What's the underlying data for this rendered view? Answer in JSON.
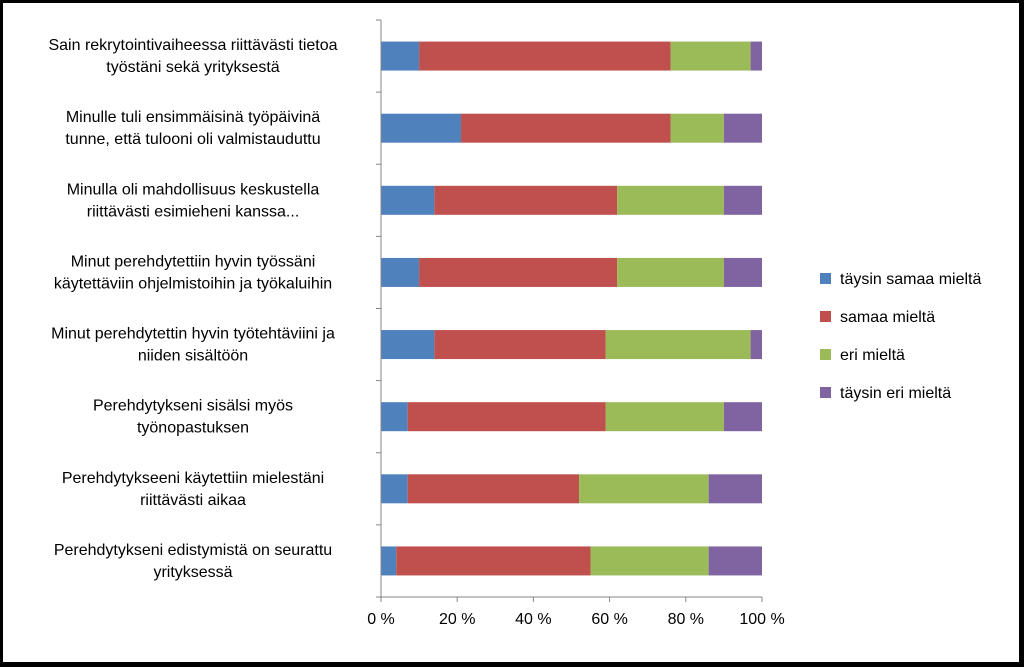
{
  "chart_data": {
    "type": "bar",
    "orientation": "horizontal",
    "stacked": "percent",
    "categories": [
      [
        "Sain rekrytointivaiheessa riittävästi tietoa",
        "työstäni sekä yrityksestä"
      ],
      [
        "Minulle tuli ensimmäisinä työpäivinä",
        "tunne, että tulooni oli valmistauduttu"
      ],
      [
        "Minulla oli mahdollisuus keskustella",
        "riittävästi esimieheni kanssa..."
      ],
      [
        "Minut perehdytettiin hyvin työssäni",
        "käytettäviin ohjelmistoihin ja työkaluihin"
      ],
      [
        "Minut perehdytettin hyvin työtehtäviini ja",
        "niiden sisältöön"
      ],
      [
        "Perehdytykseni sisälsi myös",
        "työnopastuksen"
      ],
      [
        "Perehdytykseeni käytettiin mielestäni",
        "riittävästi aikaa"
      ],
      [
        "Perehdytykseni edistymistä on seurattu",
        "yrityksessä"
      ]
    ],
    "series": [
      {
        "name": "täysin samaa mieltä",
        "color": "#4f81bd",
        "values": [
          10,
          21,
          14,
          10,
          14,
          7,
          7,
          4
        ]
      },
      {
        "name": "samaa mieltä",
        "color": "#c0504d",
        "values": [
          66,
          55,
          48,
          52,
          45,
          52,
          45,
          51
        ]
      },
      {
        "name": "eri mieltä",
        "color": "#9bbb59",
        "values": [
          21,
          14,
          28,
          28,
          38,
          31,
          34,
          31
        ]
      },
      {
        "name": "täysin eri mieltä",
        "color": "#8064a2",
        "values": [
          3,
          10,
          10,
          10,
          3,
          10,
          14,
          14
        ]
      }
    ],
    "xlim": [
      0,
      100
    ],
    "xticks": [
      "0 %",
      "20 %",
      "40 %",
      "60 %",
      "80 %",
      "100 %"
    ],
    "grid": false,
    "legend_position": "right"
  }
}
